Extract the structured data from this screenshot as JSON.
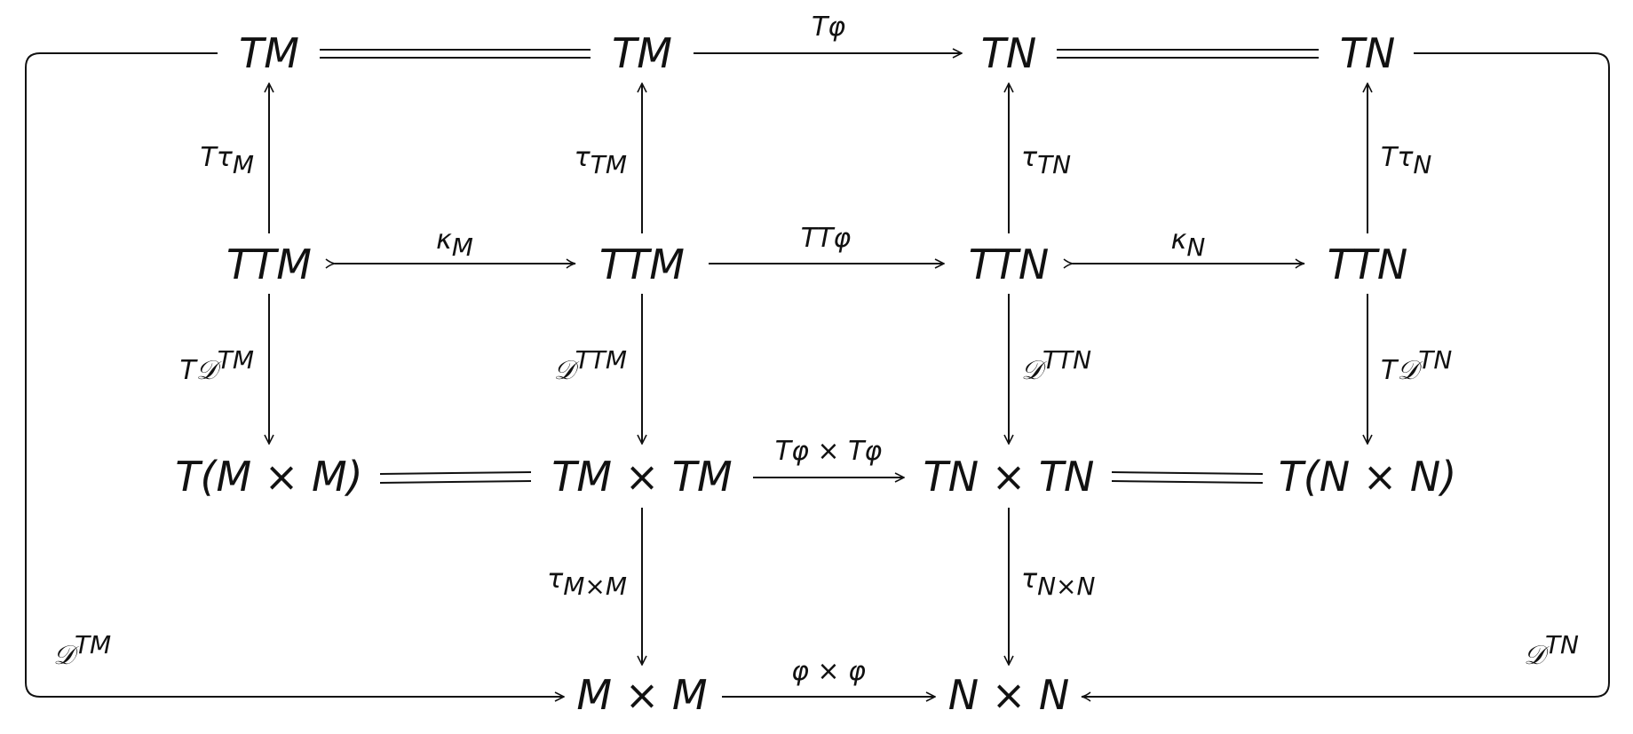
{
  "nodes": {
    "tm1": "TM",
    "tm2": "TM",
    "tn1": "TN",
    "tn2": "TN",
    "ttm1": "TTM",
    "ttm2": "TTM",
    "ttn1": "TTN",
    "ttn2": "TTN",
    "tmm": "T(M × M)",
    "tmxtm": "TM × TM",
    "tnxtn": "TN × TN",
    "tnn": "T(N × N)",
    "mxm": "M × M",
    "nxn": "N × N"
  },
  "labels": {
    "t_phi": "Tφ",
    "t_tau_m": "Tτ",
    "t_tau_m_sub": "M",
    "tau_tm": "τ",
    "tau_tm_sub": "TM",
    "tau_tn": "τ",
    "tau_tn_sub": "TN",
    "t_tau_n": "Tτ",
    "t_tau_n_sub": "N",
    "kappa_m": "κ",
    "kappa_m_sub": "M",
    "tt_phi": "TTφ",
    "kappa_n": "κ",
    "kappa_n_sub": "N",
    "t_d_tm": "T𝒟",
    "t_d_tm_sup": "TM",
    "d_ttm": "𝒟",
    "d_ttm_sup": "TTM",
    "d_ttn": "𝒟",
    "d_ttn_sup": "TTN",
    "t_d_tn": "T𝒟",
    "t_d_tn_sup": "TN",
    "tphi_x_tphi": "Tφ × Tφ",
    "tau_mxm": "τ",
    "tau_mxm_sub": "M×M",
    "tau_nxn": "τ",
    "tau_nxn_sub": "N×N",
    "phi_x_phi": "φ × φ",
    "d_tm": "𝒟",
    "d_tm_sup": "TM",
    "d_tn": "𝒟",
    "d_tn_sup": "TN"
  }
}
